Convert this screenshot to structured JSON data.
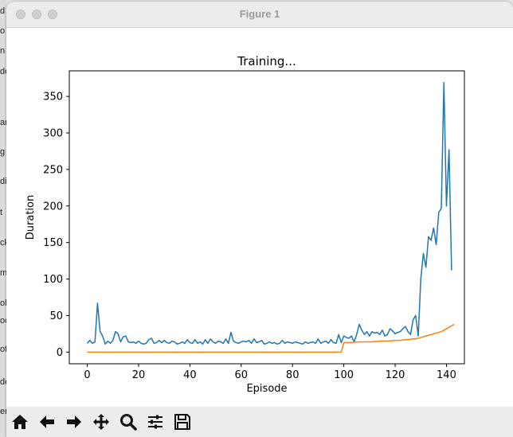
{
  "window": {
    "title": "Figure 1"
  },
  "background_clipped_text": [
    "d",
    "o",
    "n",
    "de",
    "ar",
    "g",
    "di",
    "t",
    "ck",
    "m",
    "ol",
    "oc",
    "of",
    "de",
    "er"
  ],
  "toolbar": {
    "buttons": [
      {
        "name": "home-button",
        "icon": "home-icon"
      },
      {
        "name": "back-button",
        "icon": "arrow-left-icon"
      },
      {
        "name": "forward-button",
        "icon": "arrow-right-icon"
      },
      {
        "name": "pan-button",
        "icon": "move-icon"
      },
      {
        "name": "zoom-button",
        "icon": "zoom-icon"
      },
      {
        "name": "configure-subplots-button",
        "icon": "sliders-icon"
      },
      {
        "name": "save-button",
        "icon": "save-icon"
      }
    ]
  },
  "chart_data": {
    "type": "line",
    "title": "Training...",
    "xlabel": "Episode",
    "ylabel": "Duration",
    "xlim": [
      -7,
      147
    ],
    "ylim": [
      -16,
      385
    ],
    "xticks": [
      0,
      20,
      40,
      60,
      80,
      100,
      120,
      140
    ],
    "yticks": [
      0,
      50,
      100,
      150,
      200,
      250,
      300,
      350
    ],
    "grid": false,
    "colors": {
      "series1": "#1f77b4",
      "series2": "#ff7f0e"
    },
    "series": [
      {
        "x_start": 0,
        "values": [
          12,
          16,
          12,
          14,
          67,
          28,
          22,
          11,
          15,
          12,
          16,
          28,
          25,
          14,
          21,
          22,
          14,
          13,
          14,
          12,
          15,
          12,
          11,
          12,
          17,
          19,
          12,
          13,
          16,
          13,
          16,
          13,
          12,
          15,
          14,
          11,
          12,
          14,
          12,
          17,
          13,
          12,
          17,
          12,
          14,
          11,
          17,
          12,
          18,
          14,
          12,
          15,
          14,
          12,
          18,
          12,
          27,
          15,
          13,
          12,
          14,
          15,
          14,
          16,
          12,
          18,
          13,
          14,
          16,
          11,
          12,
          14,
          12,
          13,
          11,
          12,
          16,
          12,
          14,
          13,
          12,
          14,
          13,
          12,
          11,
          14,
          12,
          13,
          14,
          12,
          18,
          12,
          14,
          15,
          12,
          17,
          13,
          12,
          24,
          13,
          22,
          20,
          19,
          22,
          14,
          24,
          38,
          30,
          24,
          28,
          22,
          28,
          26,
          27,
          24,
          30,
          22,
          24,
          32,
          29,
          25,
          27,
          28,
          32,
          35,
          28,
          24,
          44,
          50,
          22,
          100,
          135,
          116,
          158,
          153,
          170,
          147,
          191,
          197,
          369,
          200,
          277,
          112
        ]
      },
      {
        "x_start": 0,
        "values": [
          0,
          0,
          0,
          0,
          0,
          0,
          0,
          0,
          0,
          0,
          0,
          0,
          0,
          0,
          0,
          0,
          0,
          0,
          0,
          0,
          0,
          0,
          0,
          0,
          0,
          0,
          0,
          0,
          0,
          0,
          0,
          0,
          0,
          0,
          0,
          0,
          0,
          0,
          0,
          0,
          0,
          0,
          0,
          0,
          0,
          0,
          0,
          0,
          0,
          0,
          0,
          0,
          0,
          0,
          0,
          0,
          0,
          0,
          0,
          0,
          0,
          0,
          0,
          0,
          0,
          0,
          0,
          0,
          0,
          0,
          0,
          0,
          0,
          0,
          0,
          0,
          0,
          0,
          0,
          0,
          0,
          0,
          0,
          0,
          0,
          0,
          0,
          0,
          0,
          0,
          0,
          0,
          0,
          0,
          0,
          0,
          0,
          0,
          0,
          0,
          13,
          13,
          13,
          13,
          13.5,
          13.5,
          14,
          14,
          14,
          14,
          14,
          14,
          14.5,
          14.5,
          15,
          15,
          15,
          15,
          15.5,
          15.5,
          16,
          16,
          16,
          16.5,
          17,
          17,
          17.5,
          18,
          18,
          19,
          20,
          21,
          22,
          23,
          24,
          25,
          26,
          27,
          28,
          30,
          32,
          34,
          36,
          38
        ]
      }
    ]
  }
}
